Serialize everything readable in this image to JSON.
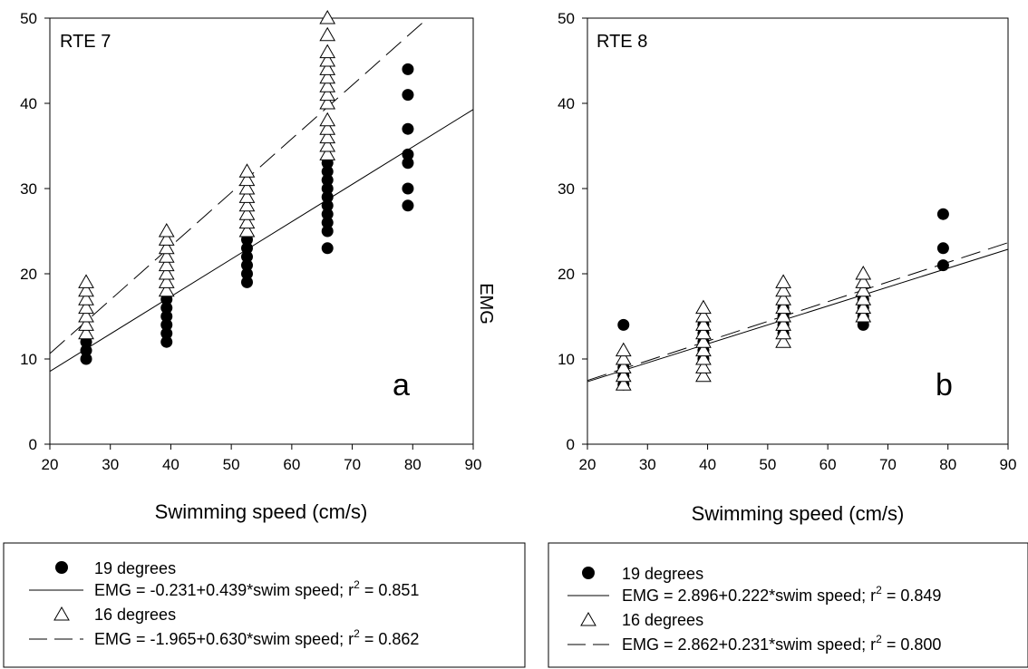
{
  "shared": {
    "y_axis_label": "EMG"
  },
  "chart_data": [
    {
      "type": "scatter",
      "panel_title": "RTE 7",
      "panel_letter": "a",
      "xlabel": "Swimming speed (cm/s)",
      "ylabel": "EMG",
      "xlim": [
        20,
        90
      ],
      "ylim": [
        0,
        50
      ],
      "xticks": [
        "20",
        "30",
        "40",
        "50",
        "60",
        "70",
        "80",
        "90"
      ],
      "yticks": [
        "0",
        "10",
        "20",
        "30",
        "40",
        "50"
      ],
      "grid": false,
      "legend_position": "below",
      "series": [
        {
          "name": "19 degrees",
          "marker": "filled-circle",
          "color": "#000000",
          "points": [
            {
              "x": 26,
              "y": [
                10,
                11,
                12
              ]
            },
            {
              "x": 39.3,
              "y": [
                12,
                13,
                14,
                15,
                16,
                17
              ]
            },
            {
              "x": 52.6,
              "y": [
                19,
                20,
                21,
                22,
                23,
                24
              ]
            },
            {
              "x": 65.9,
              "y": [
                23,
                25,
                26,
                27,
                28,
                29,
                30,
                31,
                32,
                33
              ]
            },
            {
              "x": 79.2,
              "y": [
                28,
                30,
                33,
                34,
                37,
                41,
                44
              ]
            }
          ]
        },
        {
          "name": "16 degrees",
          "marker": "open-triangle",
          "color": "#000000",
          "points": [
            {
              "x": 26,
              "y": [
                13,
                14,
                15,
                16,
                17,
                18,
                19
              ]
            },
            {
              "x": 39.3,
              "y": [
                18,
                19,
                20,
                21,
                22,
                23,
                24,
                25
              ]
            },
            {
              "x": 52.6,
              "y": [
                25,
                26,
                27,
                28,
                29,
                30,
                31,
                32
              ]
            },
            {
              "x": 65.9,
              "y": [
                34,
                35,
                36,
                37,
                38,
                40,
                41,
                42,
                43,
                44,
                45,
                46,
                48,
                50
              ]
            }
          ]
        }
      ],
      "fits": [
        {
          "name": "EMG = -0.231+0.439*swim speed; r",
          "r2": "0.851",
          "intercept": -0.231,
          "slope": 0.439,
          "style": "solid"
        },
        {
          "name": "EMG = -1.965+0.630*swim speed; r",
          "r2": "0.862",
          "intercept": -1.965,
          "slope": 0.63,
          "style": "dashed"
        }
      ]
    },
    {
      "type": "scatter",
      "panel_title": "RTE 8",
      "panel_letter": "b",
      "xlabel": "Swimming speed (cm/s)",
      "ylabel": "",
      "xlim": [
        20,
        90
      ],
      "ylim": [
        0,
        50
      ],
      "xticks": [
        "20",
        "30",
        "40",
        "50",
        "60",
        "70",
        "80",
        "90"
      ],
      "yticks": [
        "0",
        "10",
        "20",
        "30",
        "40",
        "50"
      ],
      "grid": false,
      "legend_position": "below",
      "series": [
        {
          "name": "19 degrees",
          "marker": "filled-circle",
          "color": "#000000",
          "points": [
            {
              "x": 26,
              "y": [
                7,
                8,
                9,
                14
              ]
            },
            {
              "x": 39.3,
              "y": [
                10,
                11,
                12,
                13,
                14
              ]
            },
            {
              "x": 52.6,
              "y": [
                13,
                14,
                15,
                16
              ]
            },
            {
              "x": 65.9,
              "y": [
                14,
                15,
                16,
                17
              ]
            },
            {
              "x": 79.2,
              "y": [
                21,
                23,
                27
              ]
            }
          ]
        },
        {
          "name": "16 degrees",
          "marker": "open-triangle",
          "color": "#000000",
          "points": [
            {
              "x": 26,
              "y": [
                7,
                8,
                9,
                10,
                11
              ]
            },
            {
              "x": 39.3,
              "y": [
                8,
                9,
                10,
                11,
                12,
                13,
                14,
                15,
                16
              ]
            },
            {
              "x": 52.6,
              "y": [
                12,
                13,
                14,
                15,
                16,
                17,
                18,
                19
              ]
            },
            {
              "x": 65.9,
              "y": [
                15,
                16,
                17,
                18,
                19,
                20
              ]
            }
          ]
        }
      ],
      "fits": [
        {
          "name": "EMG = 2.896+0.222*swim speed; r",
          "r2": "0.849",
          "intercept": 2.896,
          "slope": 0.222,
          "style": "solid"
        },
        {
          "name": "EMG = 2.862+0.231*swim speed; r",
          "r2": "0.800",
          "intercept": 2.862,
          "slope": 0.231,
          "style": "dashed"
        }
      ]
    }
  ]
}
